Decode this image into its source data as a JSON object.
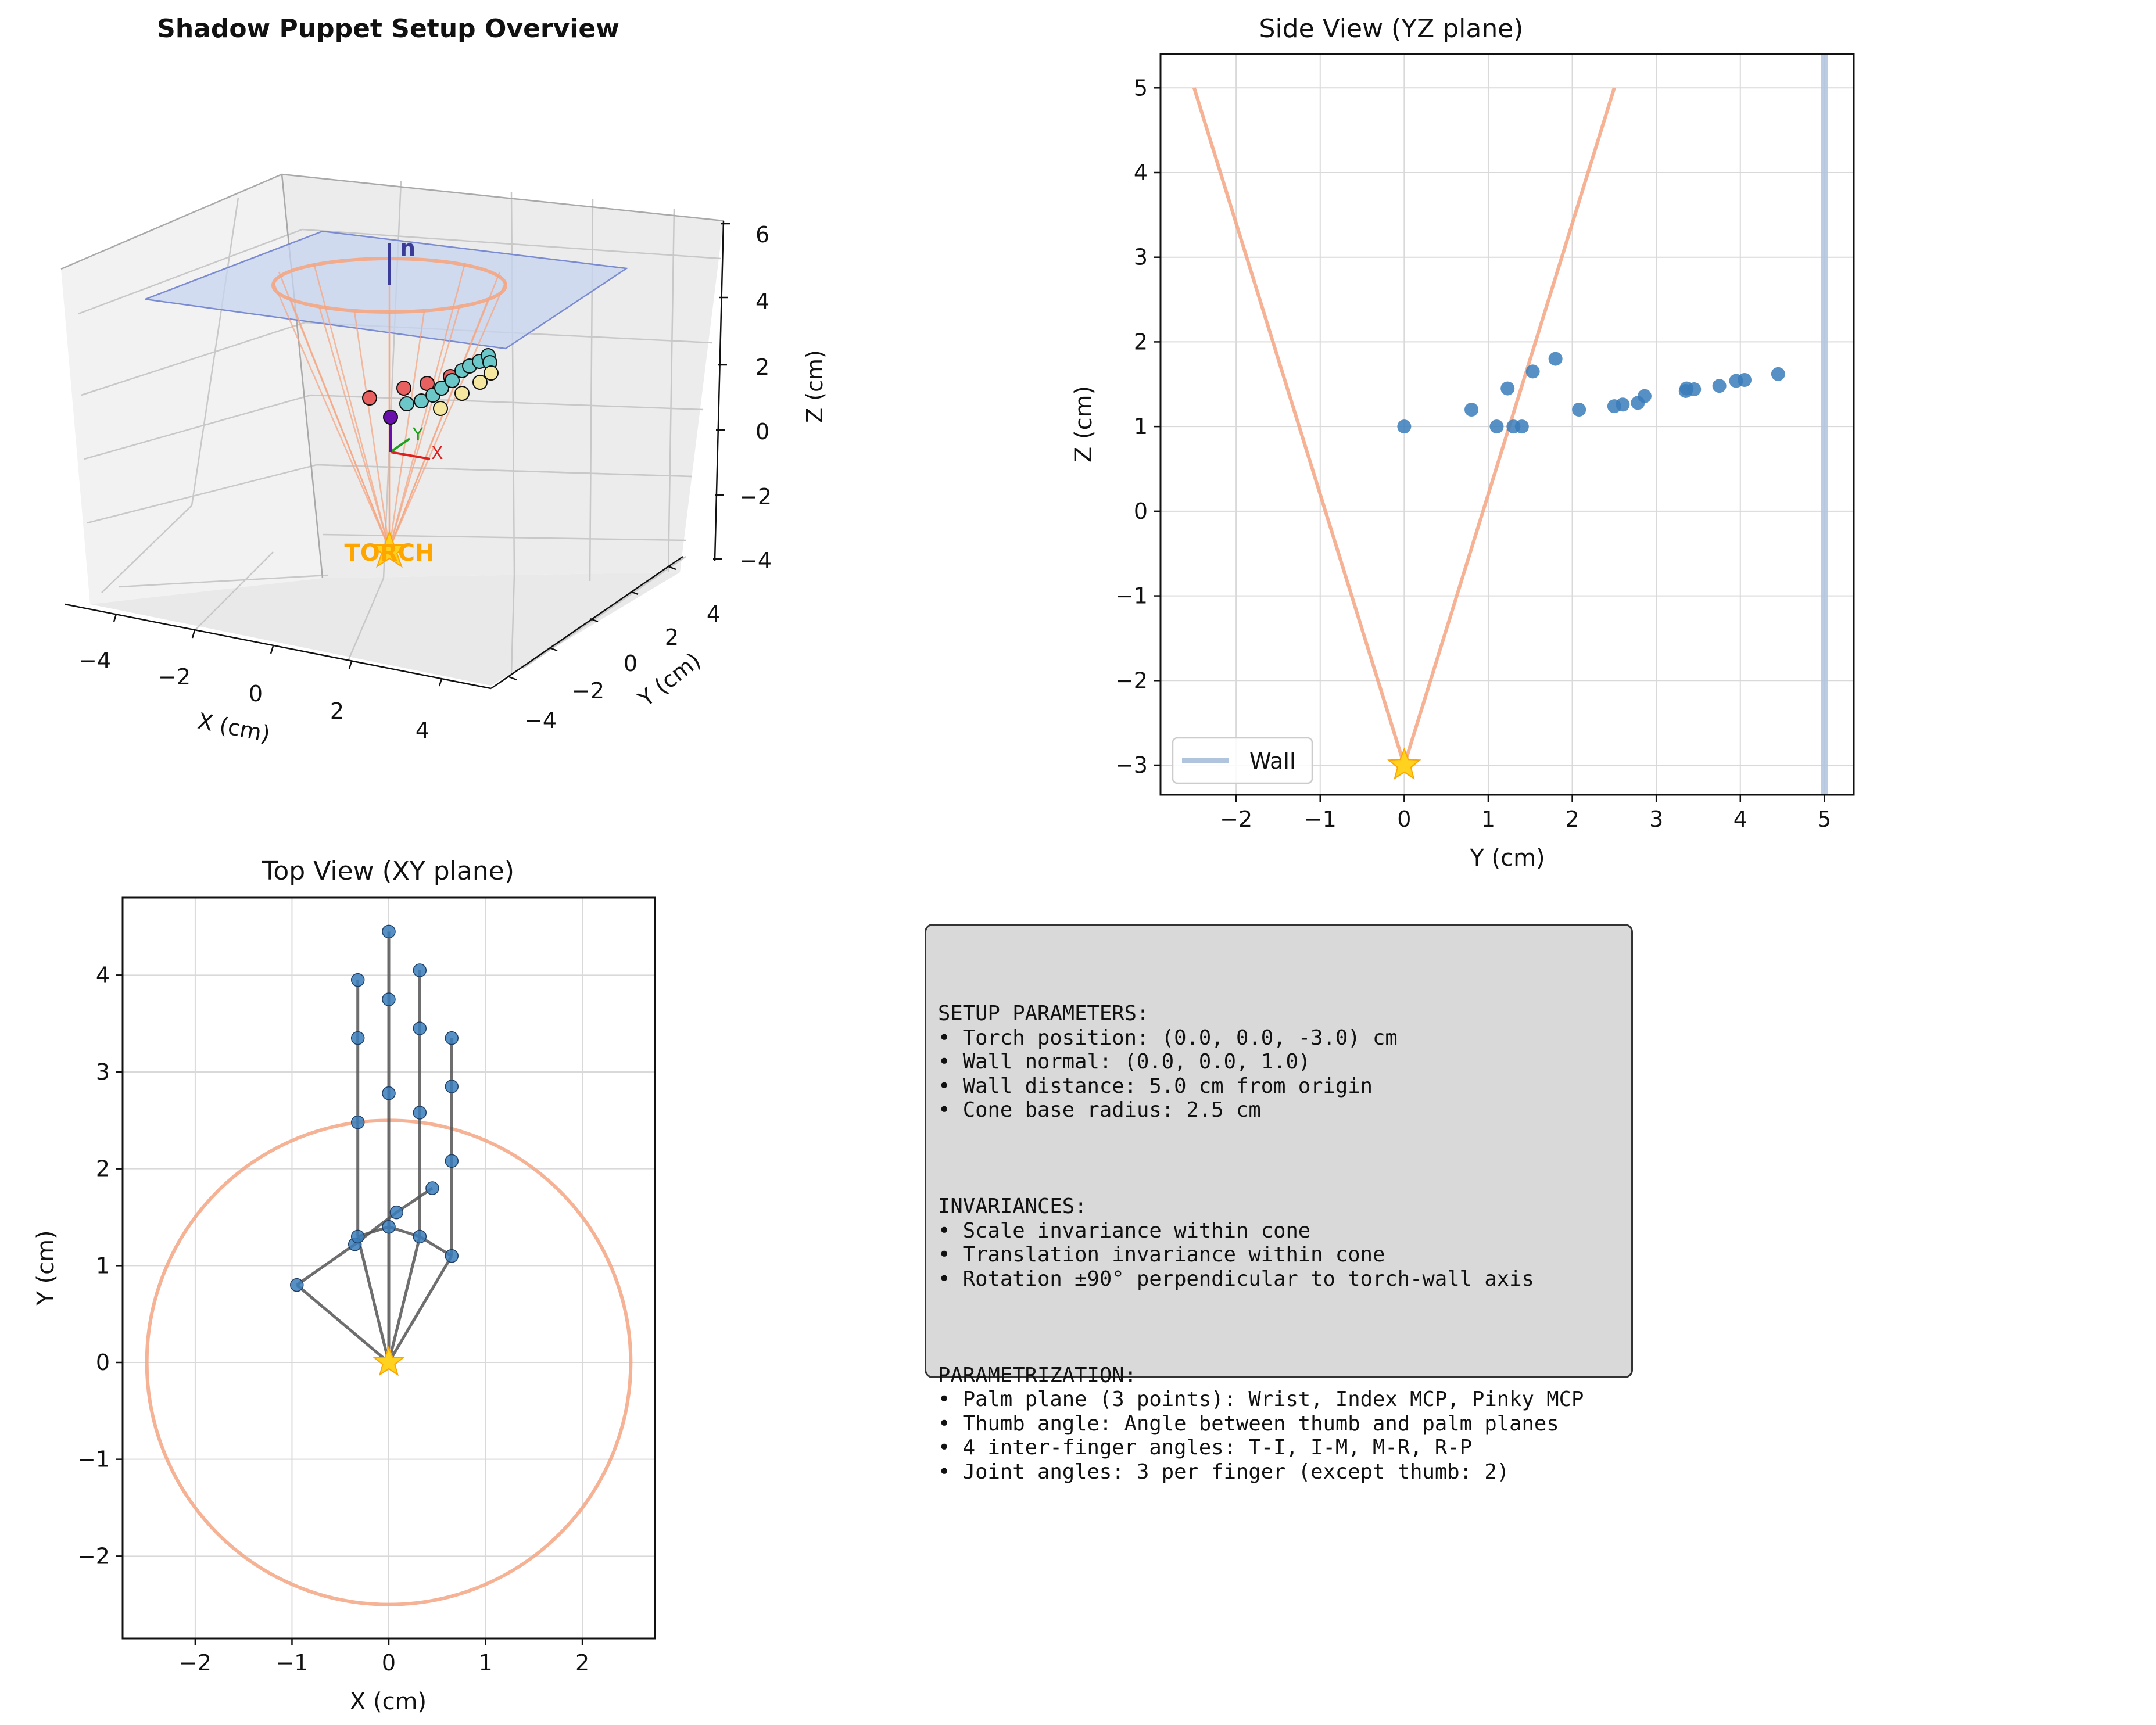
{
  "figure_title": "Shadow Puppet Setup Overview",
  "colors": {
    "points": "#3a7dba",
    "cone": "#f4a582",
    "torch": "#ffd21f",
    "torch_label": "#ffa500",
    "wall": "#b0c4de",
    "skeleton": "#555555",
    "grid": "#d9d9d9",
    "plane": "#c6d4f0",
    "red_joint": "#e86060",
    "cyan_joint": "#6cc8c8",
    "yellow_joint": "#f5e6a0",
    "purple_joint": "#6a0dad"
  },
  "panel3d": {
    "xlabel": "X (cm)",
    "ylabel": "Y (cm)",
    "zlabel": "Z (cm)",
    "xticks": [
      "−4",
      "−2",
      "0",
      "2",
      "4"
    ],
    "yticks": [
      "−4",
      "−2",
      "0",
      "2",
      "4"
    ],
    "zticks": [
      "6",
      "4",
      "2",
      "0",
      "−2",
      "−4"
    ],
    "torch_label": "TORCH",
    "normal_label": "n",
    "axis_x_label": "X",
    "axis_y_label": "Y"
  },
  "chart_data": [
    {
      "type": "scatter",
      "title": "Side View (YZ plane)",
      "xlabel": "Y (cm)",
      "ylabel": "Z (cm)",
      "xlim": [
        -2.9,
        5.35
      ],
      "ylim": [
        -3.35,
        5.4
      ],
      "xticks": [
        -2,
        -1,
        0,
        1,
        2,
        3,
        4,
        5
      ],
      "yticks": [
        -3,
        -2,
        -1,
        0,
        1,
        2,
        3,
        4,
        5
      ],
      "grid": true,
      "legend": {
        "position": "lower-left",
        "entries": [
          "Wall"
        ]
      },
      "wall_y": 5.0,
      "torch": [
        0,
        -3
      ],
      "cone_lines": [
        [
          [
            0,
            -3
          ],
          [
            -2.5,
            5
          ]
        ],
        [
          [
            0,
            -3
          ],
          [
            2.5,
            5
          ]
        ]
      ],
      "points": [
        [
          0.0,
          1.0
        ],
        [
          0.8,
          1.2
        ],
        [
          1.1,
          1.0
        ],
        [
          1.3,
          1.0
        ],
        [
          1.4,
          1.0
        ],
        [
          1.23,
          1.45
        ],
        [
          1.53,
          1.65
        ],
        [
          1.8,
          1.8
        ],
        [
          2.08,
          1.2
        ],
        [
          2.5,
          1.24
        ],
        [
          2.6,
          1.26
        ],
        [
          2.78,
          1.28
        ],
        [
          2.86,
          1.36
        ],
        [
          3.35,
          1.42
        ],
        [
          3.36,
          1.45
        ],
        [
          3.45,
          1.44
        ],
        [
          3.75,
          1.48
        ],
        [
          3.95,
          1.54
        ],
        [
          4.05,
          1.55
        ],
        [
          4.45,
          1.62
        ]
      ]
    },
    {
      "type": "scatter",
      "title": "Top View (XY plane)",
      "xlabel": "X (cm)",
      "ylabel": "Y (cm)",
      "xlim": [
        -2.75,
        2.75
      ],
      "ylim": [
        -2.85,
        4.8
      ],
      "xticks": [
        -2,
        -1,
        0,
        1,
        2
      ],
      "yticks": [
        -2,
        -1,
        0,
        1,
        2,
        3,
        4
      ],
      "grid": true,
      "cone_circle_radius": 2.5,
      "torch": [
        0,
        0
      ],
      "points": [
        [
          0,
          0
        ],
        [
          -0.95,
          0.8
        ],
        [
          -0.35,
          1.22
        ],
        [
          -0.32,
          1.3
        ],
        [
          0.08,
          1.55
        ],
        [
          0.45,
          1.8
        ],
        [
          0,
          1.4
        ],
        [
          0.32,
          1.3
        ],
        [
          0.65,
          1.1
        ],
        [
          -0.32,
          2.48
        ],
        [
          -0.32,
          3.35
        ],
        [
          -0.32,
          3.95
        ],
        [
          0,
          2.78
        ],
        [
          0,
          3.75
        ],
        [
          0,
          4.45
        ],
        [
          0.32,
          2.58
        ],
        [
          0.32,
          3.45
        ],
        [
          0.32,
          4.05
        ],
        [
          0.65,
          2.08
        ],
        [
          0.65,
          2.85
        ],
        [
          0.65,
          3.35
        ]
      ],
      "skeleton": [
        [
          [
            0,
            0
          ],
          [
            -0.95,
            0.8
          ]
        ],
        [
          [
            -0.95,
            0.8
          ],
          [
            -0.35,
            1.22
          ]
        ],
        [
          [
            -0.35,
            1.22
          ],
          [
            0.08,
            1.55
          ]
        ],
        [
          [
            0.08,
            1.55
          ],
          [
            0.45,
            1.8
          ]
        ],
        [
          [
            0,
            0
          ],
          [
            -0.32,
            1.3
          ]
        ],
        [
          [
            -0.32,
            1.3
          ],
          [
            -0.32,
            3.95
          ]
        ],
        [
          [
            0,
            0
          ],
          [
            0,
            1.4
          ]
        ],
        [
          [
            0,
            1.4
          ],
          [
            0,
            4.45
          ]
        ],
        [
          [
            0,
            0
          ],
          [
            0.32,
            1.3
          ]
        ],
        [
          [
            0.32,
            1.3
          ],
          [
            0.32,
            4.05
          ]
        ],
        [
          [
            0,
            0
          ],
          [
            0.65,
            1.1
          ]
        ],
        [
          [
            0.65,
            1.1
          ],
          [
            0.65,
            3.35
          ]
        ],
        [
          [
            -0.32,
            1.3
          ],
          [
            0,
            1.4
          ]
        ],
        [
          [
            0,
            1.4
          ],
          [
            0.32,
            1.3
          ]
        ],
        [
          [
            0.32,
            1.3
          ],
          [
            0.65,
            1.1
          ]
        ]
      ]
    }
  ],
  "info": {
    "sections": [
      {
        "heading": "SETUP PARAMETERS:",
        "lines": [
          "• Torch position: (0.0, 0.0, -3.0) cm",
          "• Wall normal: (0.0, 0.0, 1.0)",
          "• Wall distance: 5.0 cm from origin",
          "• Cone base radius: 2.5 cm"
        ]
      },
      {
        "heading": "INVARIANCES:",
        "lines": [
          "• Scale invariance within cone",
          "• Translation invariance within cone",
          "• Rotation ±90° perpendicular to torch-wall axis"
        ]
      },
      {
        "heading": "PARAMETRIZATION:",
        "lines": [
          "• Palm plane (3 points): Wrist, Index MCP, Pinky MCP",
          "• Thumb angle: Angle between thumb and palm planes",
          "• 4 inter-finger angles: T-I, I-M, M-R, R-P",
          "• Joint angles: 3 per finger (except thumb: 2)"
        ]
      }
    ]
  }
}
